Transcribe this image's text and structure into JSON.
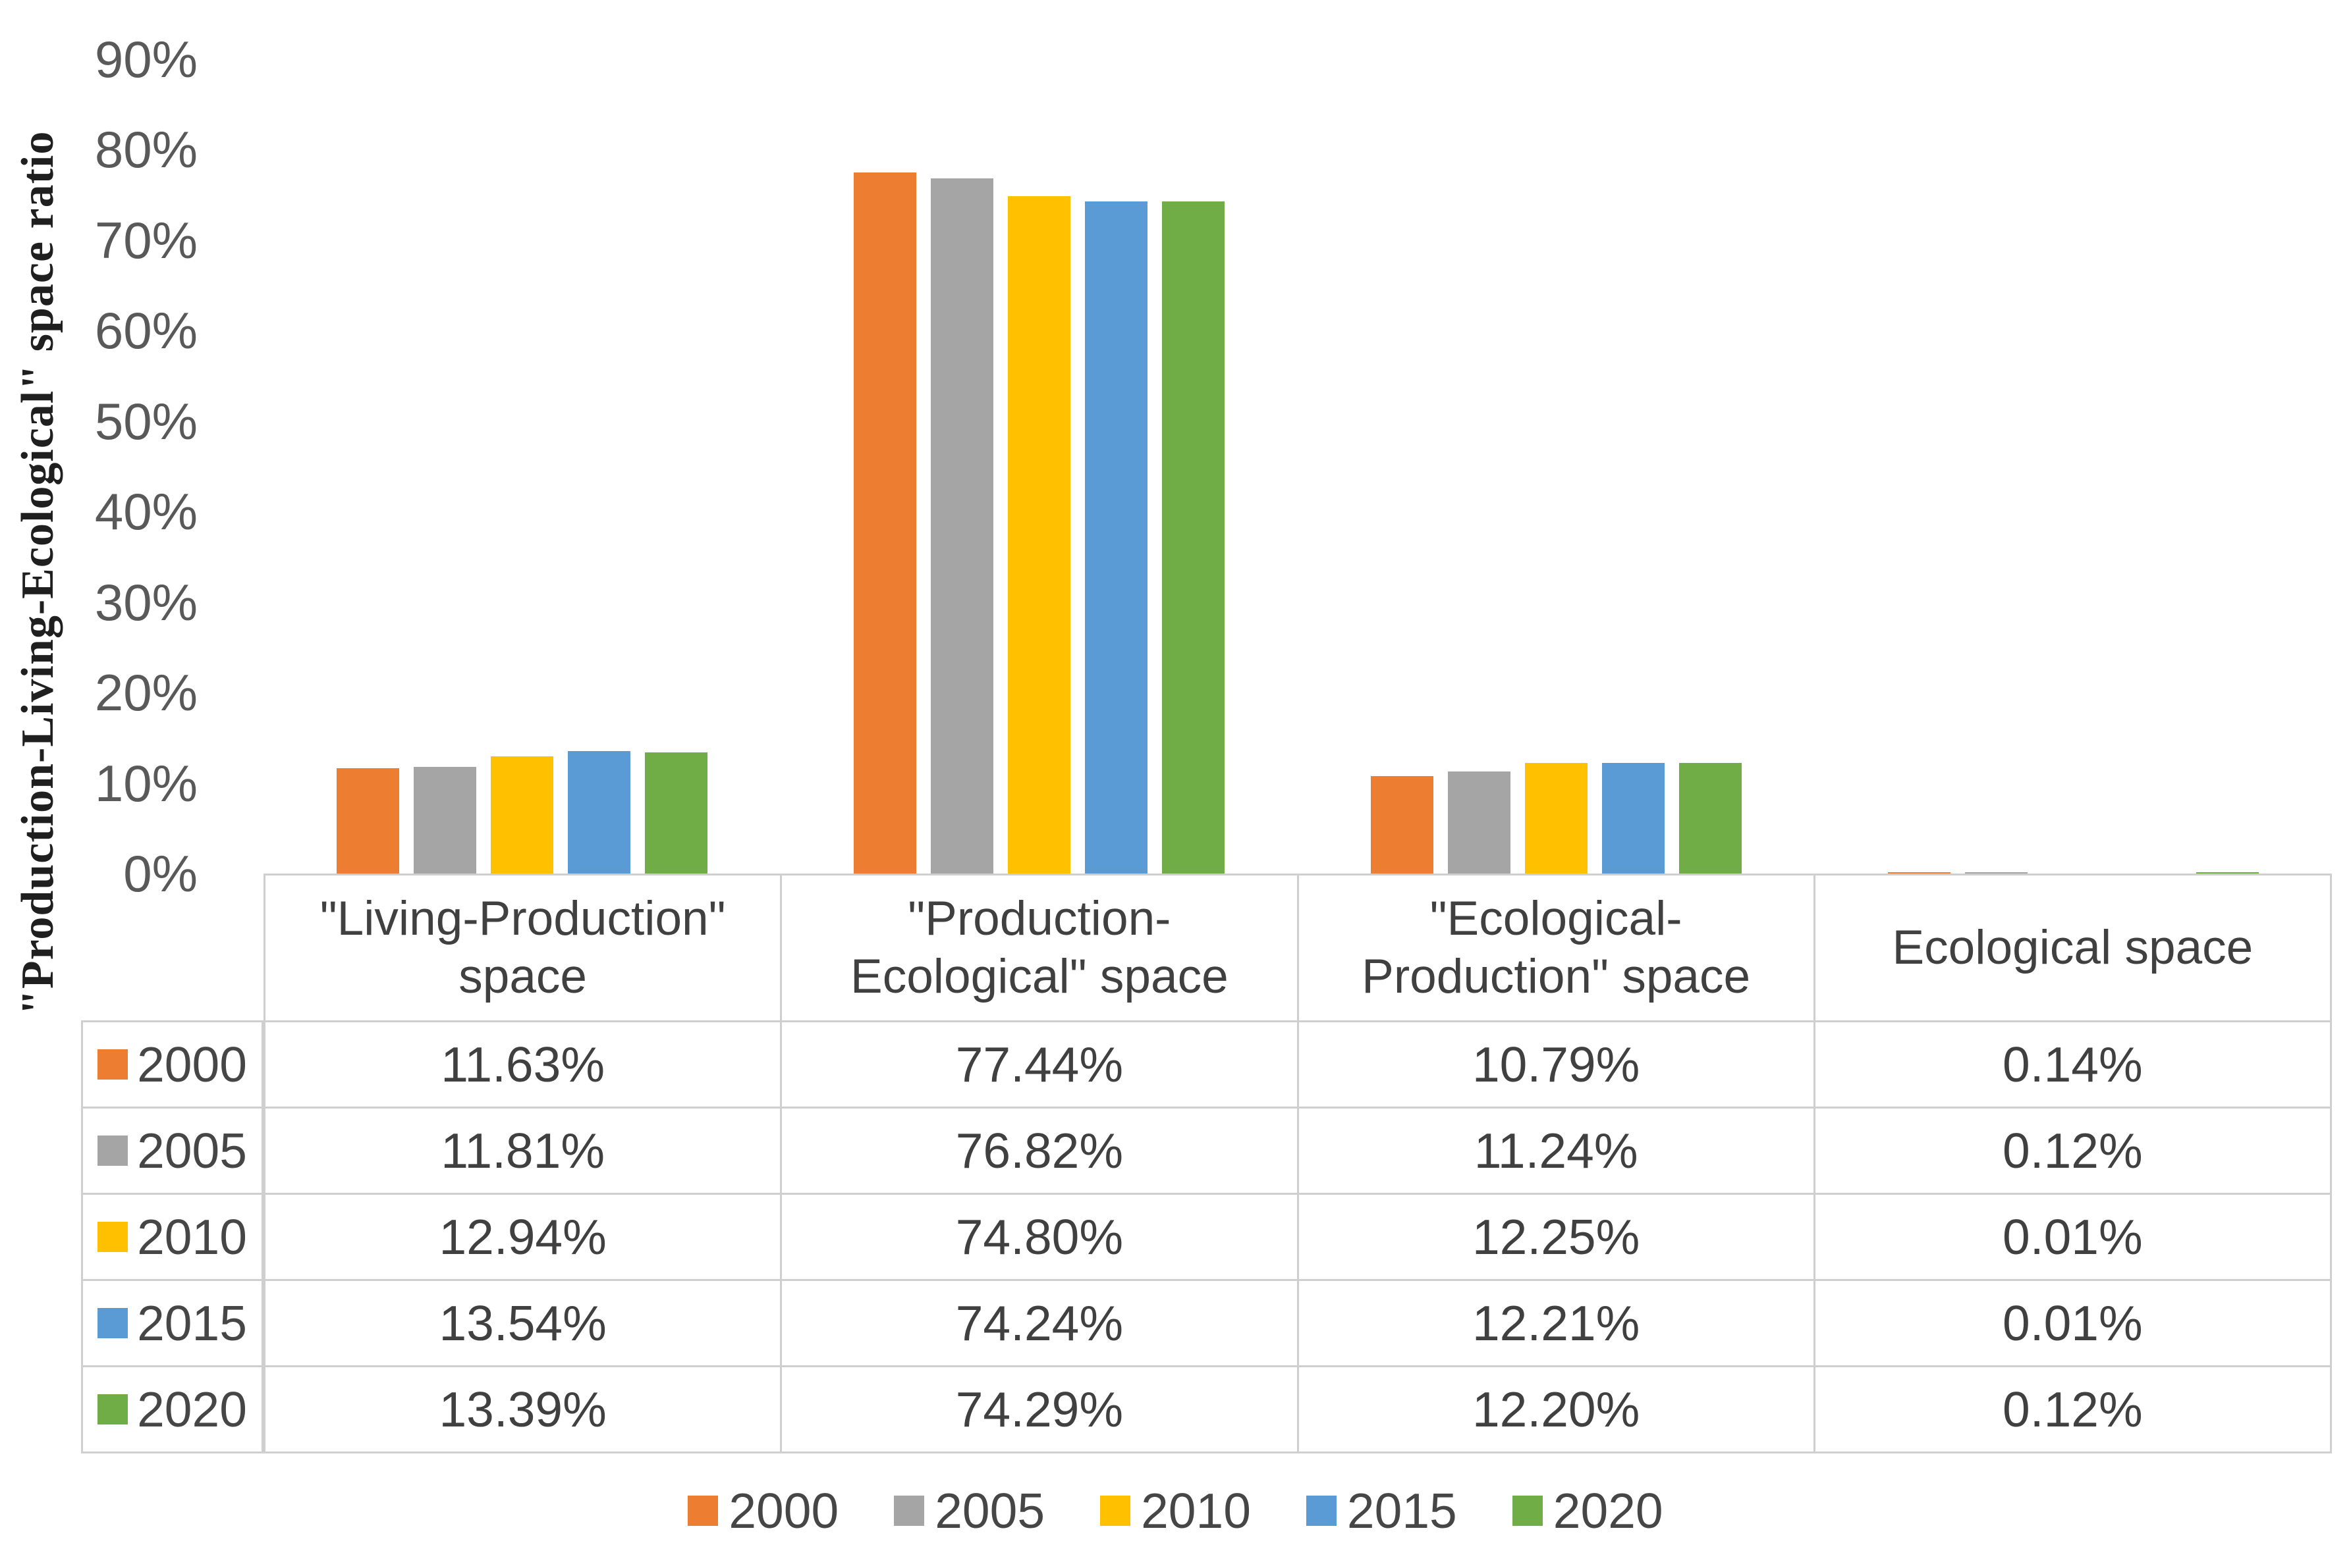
{
  "chart_data": {
    "type": "bar",
    "title": "",
    "ylabel": "\"Production-Living-Ecological\" space ratio",
    "xlabel": "",
    "categories": [
      "\"Living-Production\" space",
      "\"Production-Ecological\" space",
      "\"Ecological-Production\" space",
      "Ecological space"
    ],
    "series": [
      {
        "name": "2000",
        "color": "#ED7D31",
        "values": [
          11.63,
          77.44,
          10.79,
          0.14
        ]
      },
      {
        "name": "2005",
        "color": "#A5A5A5",
        "values": [
          11.81,
          76.82,
          11.24,
          0.12
        ]
      },
      {
        "name": "2010",
        "color": "#FFC000",
        "values": [
          12.94,
          74.8,
          12.25,
          0.01
        ]
      },
      {
        "name": "2015",
        "color": "#5B9BD5",
        "values": [
          13.54,
          74.24,
          12.21,
          0.01
        ]
      },
      {
        "name": "2020",
        "color": "#70AD47",
        "values": [
          13.39,
          74.29,
          12.2,
          0.12
        ]
      }
    ],
    "ylim": [
      0,
      90
    ],
    "y_tick_step": 10,
    "y_tick_labels": [
      "0%",
      "10%",
      "20%",
      "30%",
      "40%",
      "50%",
      "60%",
      "70%",
      "80%",
      "90%"
    ],
    "grid": false,
    "legend_position": "bottom"
  },
  "table": {
    "column_headers": [
      "\"Living-Production\" space",
      "\"Production-Ecological\" space",
      "\"Ecological-Production\" space",
      "Ecological space"
    ],
    "rows": [
      {
        "year": "2000",
        "swatch_color": "#ED7D31",
        "cells": [
          "11.63%",
          "77.44%",
          "10.79%",
          "0.14%"
        ]
      },
      {
        "year": "2005",
        "swatch_color": "#A5A5A5",
        "cells": [
          "11.81%",
          "76.82%",
          "11.24%",
          "0.12%"
        ]
      },
      {
        "year": "2010",
        "swatch_color": "#FFC000",
        "cells": [
          "12.94%",
          "74.80%",
          "12.25%",
          "0.01%"
        ]
      },
      {
        "year": "2015",
        "swatch_color": "#5B9BD5",
        "cells": [
          "13.54%",
          "74.24%",
          "12.21%",
          "0.01%"
        ]
      },
      {
        "year": "2020",
        "swatch_color": "#70AD47",
        "cells": [
          "13.39%",
          "74.29%",
          "12.20%",
          "0.12%"
        ]
      }
    ]
  },
  "legend": {
    "items": [
      {
        "label": "2000",
        "color": "#ED7D31"
      },
      {
        "label": "2005",
        "color": "#A5A5A5"
      },
      {
        "label": "2010",
        "color": "#FFC000"
      },
      {
        "label": "2015",
        "color": "#5B9BD5"
      },
      {
        "label": "2020",
        "color": "#70AD47"
      }
    ]
  }
}
